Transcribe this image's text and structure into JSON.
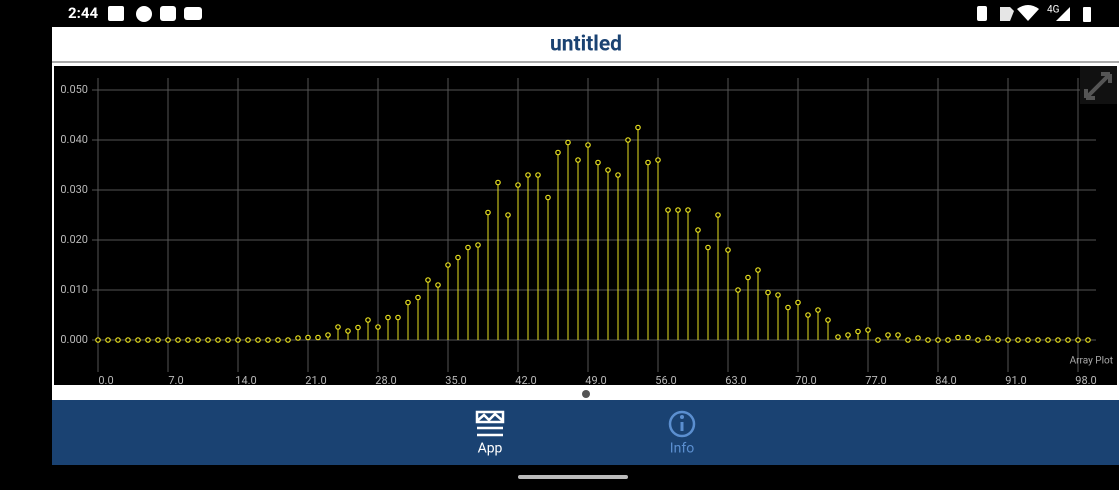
{
  "status_bar": {
    "time": "2:44",
    "network": "4G"
  },
  "header": {
    "title": "untitled"
  },
  "chart_data": {
    "type": "stem",
    "x": [
      0,
      1,
      2,
      3,
      4,
      5,
      6,
      7,
      8,
      9,
      10,
      11,
      12,
      13,
      14,
      15,
      16,
      17,
      18,
      19,
      20,
      21,
      22,
      23,
      24,
      25,
      26,
      27,
      28,
      29,
      30,
      31,
      32,
      33,
      34,
      35,
      36,
      37,
      38,
      39,
      40,
      41,
      42,
      43,
      44,
      45,
      46,
      47,
      48,
      49,
      50,
      51,
      52,
      53,
      54,
      55,
      56,
      57,
      58,
      59,
      60,
      61,
      62,
      63,
      64,
      65,
      66,
      67,
      68,
      69,
      70,
      71,
      72,
      73,
      74,
      75,
      76,
      77,
      78,
      79,
      80,
      81,
      82,
      83,
      84,
      85,
      86,
      87,
      88,
      89,
      90,
      91,
      92,
      93,
      94,
      95,
      96,
      97,
      98,
      99
    ],
    "values": [
      0,
      0,
      0,
      0,
      0,
      0,
      0,
      0,
      0,
      0,
      0,
      0,
      0,
      0,
      0,
      0,
      0,
      0,
      0,
      0,
      0.0004,
      0.0005,
      0.0005,
      0.001,
      0.0026,
      0.0018,
      0.0025,
      0.004,
      0.0026,
      0.0045,
      0.0045,
      0.0075,
      0.0085,
      0.012,
      0.011,
      0.015,
      0.0165,
      0.0185,
      0.019,
      0.0255,
      0.0315,
      0.025,
      0.031,
      0.033,
      0.033,
      0.0285,
      0.0375,
      0.0395,
      0.036,
      0.039,
      0.0355,
      0.034,
      0.033,
      0.04,
      0.0425,
      0.0355,
      0.036,
      0.026,
      0.026,
      0.026,
      0.022,
      0.0185,
      0.025,
      0.018,
      0.01,
      0.0125,
      0.014,
      0.0095,
      0.009,
      0.0065,
      0.0075,
      0.005,
      0.006,
      0.004,
      0.0006,
      0.001,
      0.0017,
      0.002,
      0,
      0.001,
      0.001,
      0,
      0.0004,
      0,
      0,
      0,
      0.0005,
      0.0005,
      0,
      0.0004,
      0,
      0,
      0,
      0,
      0,
      0,
      0,
      0,
      0,
      0
    ],
    "color": "#e8e020",
    "xlim": [
      -0.6,
      99.8
    ],
    "ylim": [
      -0.006,
      0.052
    ],
    "xticks": [
      {
        "value": 0,
        "label": "0.0"
      },
      {
        "value": 7,
        "label": "7.0"
      },
      {
        "value": 14,
        "label": "14.0"
      },
      {
        "value": 21,
        "label": "21.0"
      },
      {
        "value": 28,
        "label": "28.0"
      },
      {
        "value": 35,
        "label": "35.0"
      },
      {
        "value": 42,
        "label": "42.0"
      },
      {
        "value": 49,
        "label": "49.0"
      },
      {
        "value": 56,
        "label": "56.0"
      },
      {
        "value": 63,
        "label": "63.0"
      },
      {
        "value": 70,
        "label": "70.0"
      },
      {
        "value": 77,
        "label": "77.0"
      },
      {
        "value": 84,
        "label": "84.0"
      },
      {
        "value": 91,
        "label": "91.0"
      },
      {
        "value": 98,
        "label": "98.0"
      }
    ],
    "yticks": [
      {
        "value": 0,
        "label": "0.000"
      },
      {
        "value": 0.01,
        "label": "0.010"
      },
      {
        "value": 0.02,
        "label": "0.020"
      },
      {
        "value": 0.03,
        "label": "0.030"
      },
      {
        "value": 0.04,
        "label": "0.040"
      },
      {
        "value": 0.05,
        "label": "0.050"
      }
    ],
    "grid": true,
    "annotation": "Array Plot"
  },
  "nav": {
    "items": [
      {
        "label": "App"
      },
      {
        "label": "Info"
      }
    ]
  }
}
